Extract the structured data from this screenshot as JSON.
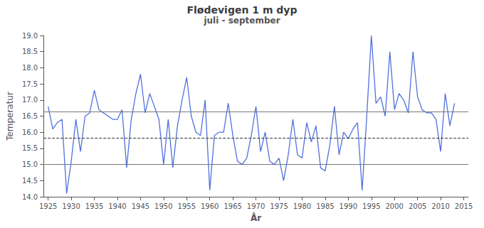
{
  "chart_data": {
    "type": "line",
    "title": "Flødevigen 1 m dyp",
    "subtitle": "juli - september",
    "xlabel": "År",
    "ylabel": "Temperatur",
    "x": [
      1925,
      1926,
      1927,
      1928,
      1929,
      1930,
      1931,
      1932,
      1933,
      1934,
      1935,
      1936,
      1937,
      1938,
      1939,
      1940,
      1941,
      1942,
      1943,
      1944,
      1945,
      1946,
      1947,
      1948,
      1949,
      1950,
      1951,
      1952,
      1953,
      1954,
      1955,
      1956,
      1957,
      1958,
      1959,
      1960,
      1961,
      1962,
      1963,
      1964,
      1965,
      1966,
      1967,
      1968,
      1969,
      1970,
      1971,
      1972,
      1973,
      1974,
      1975,
      1976,
      1977,
      1978,
      1979,
      1980,
      1981,
      1982,
      1983,
      1984,
      1985,
      1986,
      1987,
      1988,
      1989,
      1990,
      1991,
      1992,
      1993,
      1994,
      1995,
      1996,
      1997,
      1998,
      1999,
      2000,
      2001,
      2002,
      2003,
      2004,
      2005,
      2006,
      2007,
      2008,
      2009,
      2010,
      2011,
      2012,
      2013
    ],
    "values": [
      16.8,
      16.1,
      16.3,
      16.4,
      14.1,
      15.1,
      16.4,
      15.4,
      16.5,
      16.6,
      17.3,
      16.7,
      16.6,
      16.5,
      16.4,
      16.4,
      16.7,
      14.9,
      16.4,
      17.2,
      17.8,
      16.6,
      17.2,
      16.8,
      16.4,
      15.0,
      16.4,
      14.9,
      16.2,
      17.0,
      17.7,
      16.5,
      16.0,
      15.9,
      17.0,
      14.2,
      15.9,
      16.0,
      16.0,
      16.9,
      15.9,
      15.1,
      15.0,
      15.2,
      15.9,
      16.8,
      15.4,
      16.0,
      15.1,
      15.0,
      15.2,
      14.5,
      15.3,
      16.4,
      15.3,
      15.2,
      16.3,
      15.7,
      16.2,
      14.9,
      14.8,
      15.6,
      16.8,
      15.3,
      16.0,
      15.8,
      16.1,
      16.3,
      14.2,
      16.5,
      19.0,
      16.9,
      17.1,
      16.5,
      18.5,
      16.7,
      17.2,
      17.0,
      16.6,
      18.5,
      17.1,
      16.7,
      16.6,
      16.6,
      16.4,
      15.4,
      17.2,
      16.2,
      16.9
    ],
    "xlim": [
      1924,
      2016
    ],
    "xticks": [
      1925,
      1930,
      1935,
      1940,
      1945,
      1950,
      1955,
      1960,
      1965,
      1970,
      1975,
      1980,
      1985,
      1990,
      1995,
      2000,
      2005,
      2010,
      2015
    ],
    "ylim": [
      14.0,
      19.0
    ],
    "yticks": [
      {
        "value": 14.0,
        "label": "14.0"
      },
      {
        "value": 14.5,
        "label": "14.5"
      },
      {
        "value": 15.0,
        "label": "15.0"
      },
      {
        "value": 15.5,
        "label": "15.5"
      },
      {
        "value": 16.0,
        "label": "16.0"
      },
      {
        "value": 16.5,
        "label": "16.5"
      },
      {
        "value": 17.0,
        "label": "17.0"
      },
      {
        "value": 17.5,
        "label": "17.5"
      },
      {
        "value": 18.0,
        "label": "18.0"
      },
      {
        "value": 18.5,
        "label": "18.5"
      },
      {
        "value": 19.0,
        "label": "19.0"
      }
    ],
    "hlines": [
      {
        "value": 15.0,
        "line_style": "solid"
      },
      {
        "value": 16.63,
        "line_style": "solid"
      },
      {
        "value": 15.83,
        "line_style": "dashed"
      }
    ],
    "grid": false
  }
}
